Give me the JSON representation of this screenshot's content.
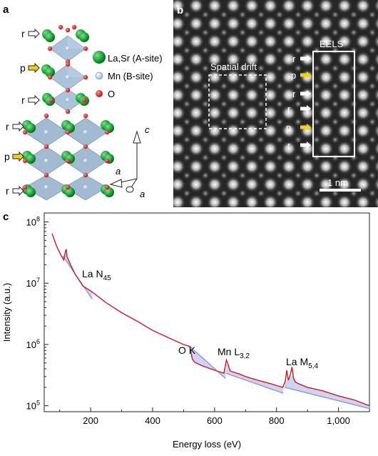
{
  "panel_a": {
    "label": "a",
    "row_labels": [
      "r",
      "p",
      "r",
      "r",
      "p",
      "r"
    ],
    "legend": [
      {
        "text": "La,Sr (A-site)",
        "color": "#1aa33a"
      },
      {
        "text": "Mn (B-site)",
        "color": "#a9c8e0"
      },
      {
        "text": "O",
        "color": "#d42020"
      }
    ],
    "axes": {
      "c": "c",
      "a1": "a",
      "a2": "a"
    }
  },
  "panel_b": {
    "label": "b",
    "region_drift": "Spatial drift",
    "region_eels": "EELS",
    "row_labels": [
      "r",
      "p",
      "r",
      "r",
      "p",
      "r"
    ],
    "scale_bar": "1 nm"
  },
  "panel_c": {
    "label": "c",
    "annotations": {
      "la_n": {
        "main": "La N",
        "sub": "45"
      },
      "ok": {
        "main": "O K",
        "sub": ""
      },
      "mn_l": {
        "main": "Mn L",
        "sub": "3,2"
      },
      "la_m": {
        "main": "La M",
        "sub": "5,4"
      }
    }
  },
  "chart_data": {
    "type": "line",
    "title": "",
    "xlabel": "Energy loss (eV)",
    "ylabel": "Intensity (a.u.)",
    "xlim": [
      50,
      1100
    ],
    "ylim": [
      80000,
      140000000
    ],
    "yscale": "log",
    "x_ticks": [
      200,
      400,
      600,
      800,
      1000
    ],
    "x_tick_labels": [
      "200",
      "400",
      "600",
      "800",
      "1,000"
    ],
    "y_ticks": [
      100000,
      1000000,
      10000000,
      100000000
    ],
    "y_tick_labels": [
      {
        "base": "10",
        "exp": "5"
      },
      {
        "base": "10",
        "exp": "6"
      },
      {
        "base": "10",
        "exp": "7"
      },
      {
        "base": "10",
        "exp": "8"
      }
    ],
    "series": [
      {
        "color": "#d01a2a",
        "x": [
          75,
          90,
          105,
          113,
          118,
          121,
          124,
          135,
          150,
          175,
          200,
          250,
          300,
          350,
          400,
          450,
          500,
          520,
          528,
          535,
          540,
          560,
          600,
          630,
          638,
          642,
          650,
          680,
          700,
          740,
          780,
          820,
          828,
          833,
          838,
          845,
          850,
          855,
          860,
          870,
          900,
          950,
          1000,
          1050,
          1100
        ],
        "y": [
          65000000,
          40000000,
          28000000,
          24000000,
          32000000,
          36000000,
          27000000,
          20000000,
          14000000,
          9000000,
          7500000,
          4800000,
          3300000,
          2400000,
          1700000,
          1300000,
          1000000,
          930000,
          580000,
          520000,
          500000,
          450000,
          380000,
          340000,
          560000,
          500000,
          370000,
          330000,
          300000,
          260000,
          230000,
          200000,
          250000,
          380000,
          260000,
          330000,
          430000,
          280000,
          245000,
          230000,
          200000,
          175000,
          145000,
          125000,
          100000
        ]
      }
    ],
    "backgrounds": [
      {
        "name": "La N45 background",
        "color": "#8d95d8",
        "x": [
          110,
          205
        ],
        "y": [
          28000000,
          5500000
        ]
      },
      {
        "name": "O K background",
        "color": "#8d95d8",
        "x": [
          520,
          635
        ],
        "y": [
          930000,
          280000
        ]
      },
      {
        "name": "Mn L background",
        "color": "#8d95d8",
        "x": [
          636,
          822
        ],
        "y": [
          340000,
          160000
        ]
      },
      {
        "name": "La M background",
        "color": "#8d95d8",
        "x": [
          826,
          1100
        ],
        "y": [
          200000,
          90000
        ]
      }
    ]
  }
}
